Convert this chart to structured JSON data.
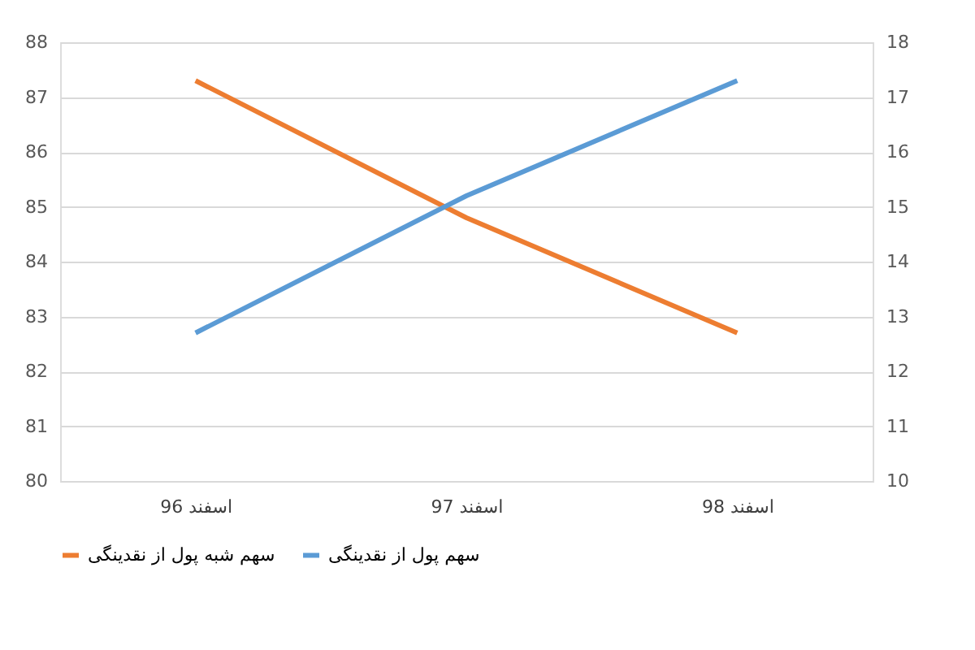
{
  "chart_data": {
    "type": "line",
    "categories": [
      "اسفند 96",
      "اسفند 97",
      "اسفند 98"
    ],
    "series": [
      {
        "name": "سهم شبه پول از نقدینگی",
        "color": "#ed7d31",
        "values": [
          87.3,
          84.8,
          82.7
        ]
      },
      {
        "name": "سهم پول از نقدینگی",
        "color": "#5b9bd5",
        "values": [
          12.7,
          15.2,
          17.3
        ],
        "axis": "y2"
      }
    ],
    "ylim": [
      80,
      88
    ],
    "yticks": [
      80,
      81,
      82,
      83,
      84,
      85,
      86,
      87,
      88
    ],
    "y2lim": [
      10,
      18
    ],
    "y2ticks": [
      10,
      11,
      12,
      13,
      14,
      15,
      16,
      17,
      18
    ],
    "grid": "y",
    "legend": "bottom",
    "marker": "none",
    "line_style": "solid"
  }
}
